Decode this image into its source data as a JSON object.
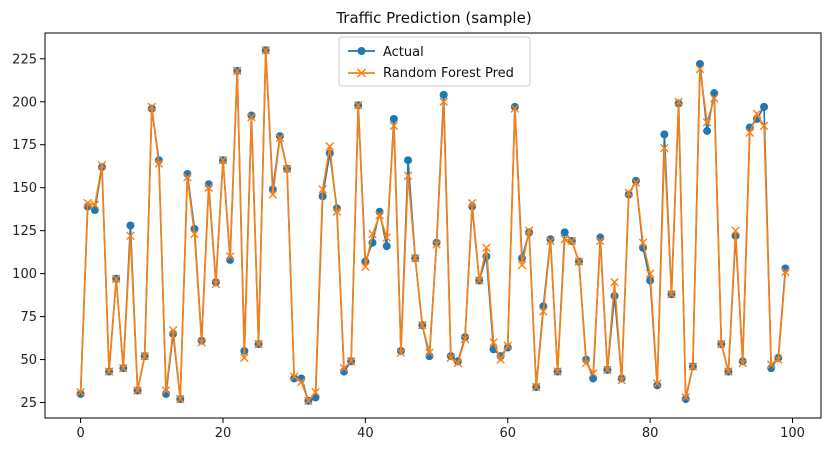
{
  "chart_data": {
    "type": "line",
    "title": "Traffic Prediction (sample)",
    "xlabel": "",
    "ylabel": "",
    "xlim": [
      -5,
      104
    ],
    "ylim": [
      16,
      240
    ],
    "xticks": [
      0,
      20,
      40,
      60,
      80,
      100
    ],
    "yticks": [
      25,
      50,
      75,
      100,
      125,
      150,
      175,
      200,
      225
    ],
    "grid": false,
    "legend_position": "top-center",
    "x": [
      0,
      1,
      2,
      3,
      4,
      5,
      6,
      7,
      8,
      9,
      10,
      11,
      12,
      13,
      14,
      15,
      16,
      17,
      18,
      19,
      20,
      21,
      22,
      23,
      24,
      25,
      26,
      27,
      28,
      29,
      30,
      31,
      32,
      33,
      34,
      35,
      36,
      37,
      38,
      39,
      40,
      41,
      42,
      43,
      44,
      45,
      46,
      47,
      48,
      49,
      50,
      51,
      52,
      53,
      54,
      55,
      56,
      57,
      58,
      59,
      60,
      61,
      62,
      63,
      64,
      65,
      66,
      67,
      68,
      69,
      70,
      71,
      72,
      73,
      74,
      75,
      76,
      77,
      78,
      79,
      80,
      81,
      82,
      83,
      84,
      85,
      86,
      87,
      88,
      89,
      90,
      91,
      92,
      93,
      94,
      95,
      96,
      97,
      98,
      99
    ],
    "series": [
      {
        "name": "Actual",
        "color": "#1f77b4",
        "marker": "circle",
        "values": [
          30,
          139,
          137,
          162,
          43,
          97,
          45,
          128,
          32,
          52,
          196,
          166,
          30,
          65,
          27,
          158,
          126,
          61,
          152,
          95,
          166,
          108,
          218,
          55,
          192,
          59,
          230,
          149,
          180,
          161,
          39,
          39,
          26,
          28,
          145,
          170,
          138,
          43,
          49,
          198,
          107,
          118,
          136,
          116,
          190,
          55,
          166,
          109,
          70,
          52,
          118,
          204,
          52,
          49,
          63,
          139,
          96,
          110,
          56,
          52,
          57,
          197,
          109,
          124,
          34,
          81,
          120,
          43,
          124,
          119,
          107,
          50,
          39,
          121,
          44,
          87,
          39,
          146,
          154,
          115,
          96,
          35,
          181,
          88,
          199,
          27,
          46,
          222,
          183,
          205,
          59,
          43,
          122,
          49,
          185,
          190,
          197,
          45,
          51,
          103
        ]
      },
      {
        "name": "Random Forest Pred",
        "color": "#ff7f0e",
        "marker": "x",
        "values": [
          31,
          141,
          140,
          163,
          43,
          97,
          45,
          122,
          32,
          52,
          197,
          164,
          32,
          67,
          27,
          156,
          123,
          60,
          150,
          94,
          166,
          110,
          218,
          51,
          191,
          59,
          230,
          146,
          179,
          161,
          40,
          37,
          26,
          31,
          149,
          174,
          136,
          45,
          49,
          198,
          104,
          123,
          134,
          121,
          186,
          54,
          157,
          109,
          70,
          54,
          117,
          200,
          51,
          48,
          62,
          141,
          96,
          115,
          60,
          50,
          58,
          196,
          105,
          125,
          34,
          78,
          119,
          43,
          120,
          119,
          107,
          48,
          42,
          119,
          44,
          95,
          38,
          147,
          153,
          118,
          100,
          36,
          173,
          88,
          200,
          28,
          46,
          219,
          188,
          202,
          59,
          43,
          125,
          48,
          182,
          193,
          186,
          47,
          50,
          101
        ]
      }
    ]
  }
}
